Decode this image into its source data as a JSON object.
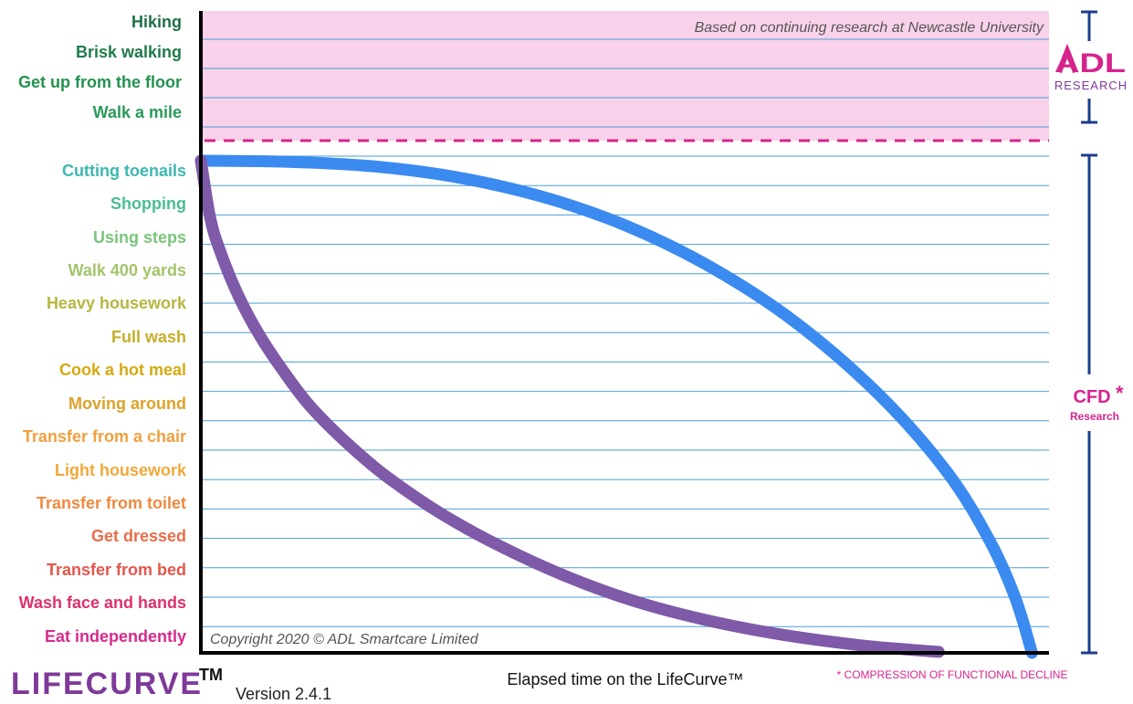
{
  "chart_data": {
    "type": "line",
    "title": "",
    "xlabel": "Elapsed time on the LifeCurve™",
    "ylabel": "",
    "y_levels_top_to_bottom": [
      "Hiking",
      "Brisk walking",
      "Get up from the floor",
      "Walk a mile",
      "Cutting toenails",
      "Shopping",
      "Using steps",
      "Walk 400 yards",
      "Heavy housework",
      "Full wash",
      "Cook a hot meal",
      "Moving around",
      "Transfer from a chair",
      "Light housework",
      "Transfer from toilet",
      "Get dressed",
      "Transfer from bed",
      "Wash face and hands",
      "Eat independently"
    ],
    "label_colors": [
      "#1f6e46",
      "#1f7a4a",
      "#23924f",
      "#2a9a5a",
      "#3db8b0",
      "#4bbd95",
      "#7cc47c",
      "#a3c46a",
      "#b6b642",
      "#c4ae2a",
      "#d4aa10",
      "#dca22a",
      "#f0a040",
      "#f0a83a",
      "#ee8a40",
      "#e86e4a",
      "#e4564c",
      "#e0306e",
      "#d62a8c"
    ],
    "xlim": [
      0,
      100
    ],
    "ylim": [
      0,
      100
    ],
    "upper_zone": {
      "label": "ADL Research",
      "color": "#f8d2ea",
      "boundary_y": 100,
      "note": "Based on continuing research at Newcastle University"
    },
    "series": [
      {
        "color": "#3b8af0",
        "x": [
          0,
          10,
          20,
          30,
          40,
          50,
          60,
          70,
          80,
          88,
          93,
          96,
          98
        ],
        "y": [
          100,
          99.8,
          98.9,
          96.7,
          92.8,
          86.9,
          78.5,
          67.3,
          52.4,
          36.7,
          22.8,
          11.3,
          0
        ]
      },
      {
        "color": "#7e5aa8",
        "x": [
          0,
          1.1,
          2.3,
          4.5,
          7,
          10,
          13,
          17.5,
          22,
          28.5,
          35.5,
          43,
          51,
          59.5,
          68.5,
          77.5,
          84,
          87
        ],
        "y": [
          100,
          88.4,
          81.5,
          72.3,
          64.3,
          56.6,
          49.9,
          42.2,
          35.7,
          28.1,
          21.5,
          15.6,
          10.6,
          6.7,
          3.7,
          1.6,
          0.6,
          0.2
        ]
      }
    ],
    "grid": true
  },
  "branding": {
    "adl_logo": "ADL",
    "adl_sub": "RESEARCH",
    "cfd_label": "CFD",
    "cfd_star": "*",
    "cfd_sub": "Research",
    "cfd_footnote": "* COMPRESSION OF FUNCTIONAL DECLINE",
    "copyright": "Copyright 2020 © ADL Smartcare Limited",
    "product": "LIFECURVE",
    "tm": "TM",
    "version": "Version 2.4.1",
    "accent_pink": "#d6248c",
    "bracket_blue": "#1d3c8c"
  }
}
